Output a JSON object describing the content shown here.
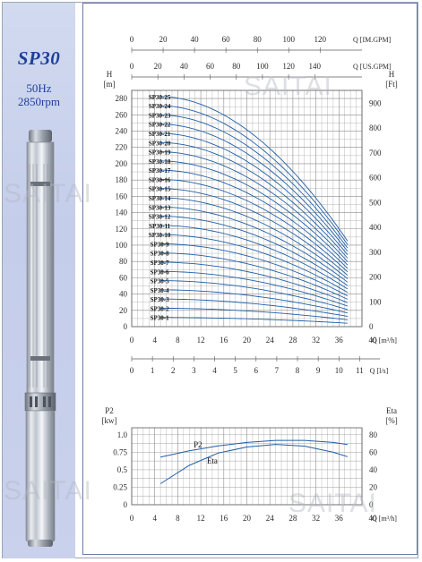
{
  "header": {
    "model": "SP30",
    "frequency": "50Hz",
    "speed": "2850rpm"
  },
  "watermark": "SAITAI",
  "colors": {
    "curve": "#1f5fa8",
    "grid": "#8c8c8c",
    "grid_major": "#5a5a5a",
    "label": "#2a2a2a",
    "sidebar": "#c9d1ec",
    "title": "#1e3f99"
  },
  "chart_data": [
    {
      "type": "line",
      "chart": "head-flow",
      "x_unit_label": "Q [m³/h]",
      "x_ticks": [
        0,
        4,
        8,
        12,
        16,
        20,
        24,
        28,
        32,
        36,
        40
      ],
      "xlim": [
        0,
        40
      ],
      "y_left_label": "H",
      "y_left_unit": "[m]",
      "y_left_ticks": [
        0,
        20,
        40,
        60,
        80,
        100,
        120,
        140,
        160,
        180,
        200,
        220,
        240,
        260,
        280
      ],
      "ylim": [
        0,
        290
      ],
      "y_right_label": "H",
      "y_right_unit": "[Ft]",
      "y_right_ticks": [
        0,
        100,
        200,
        300,
        400,
        500,
        600,
        700,
        800,
        900
      ],
      "top_axes": [
        {
          "label": "Q [IM.GPM]",
          "ticks": [
            0,
            20,
            40,
            60,
            80,
            100,
            120
          ],
          "units_per_m3h": 3.666
        },
        {
          "label": "Q [US.GPM]",
          "ticks": [
            0,
            20,
            40,
            60,
            80,
            100,
            120,
            140
          ],
          "units_per_m3h": 4.403
        }
      ],
      "bottom_axis_ls": {
        "label": "Q [l/s]",
        "ticks": [
          0,
          1,
          2,
          3,
          4,
          5,
          6,
          7,
          8,
          9,
          10,
          11
        ],
        "units_per_m3h": 0.27778
      },
      "curve_x_range": [
        5,
        37.5
      ],
      "grid": true,
      "series": [
        {
          "name": "SP30-1",
          "shut_off_head": 11.3,
          "end_head": 4.2
        },
        {
          "name": "SP30-2",
          "shut_off_head": 22.6,
          "end_head": 8.4
        },
        {
          "name": "SP30-3",
          "shut_off_head": 33.9,
          "end_head": 12.6
        },
        {
          "name": "SP30-4",
          "shut_off_head": 45.2,
          "end_head": 16.8
        },
        {
          "name": "SP30-5",
          "shut_off_head": 56.5,
          "end_head": 21.0
        },
        {
          "name": "SP30-6",
          "shut_off_head": 67.8,
          "end_head": 25.2
        },
        {
          "name": "SP30-7",
          "shut_off_head": 79.1,
          "end_head": 29.4
        },
        {
          "name": "SP30-8",
          "shut_off_head": 90.4,
          "end_head": 33.6
        },
        {
          "name": "SP30-9",
          "shut_off_head": 101.7,
          "end_head": 37.8
        },
        {
          "name": "SP30-10",
          "shut_off_head": 113.0,
          "end_head": 42.0
        },
        {
          "name": "SP30-11",
          "shut_off_head": 124.3,
          "end_head": 46.2
        },
        {
          "name": "SP30-12",
          "shut_off_head": 135.6,
          "end_head": 50.4
        },
        {
          "name": "SP30-13",
          "shut_off_head": 146.9,
          "end_head": 54.6
        },
        {
          "name": "SP30-14",
          "shut_off_head": 158.2,
          "end_head": 58.8
        },
        {
          "name": "SP30-15",
          "shut_off_head": 169.5,
          "end_head": 63.0
        },
        {
          "name": "SP30-16",
          "shut_off_head": 180.8,
          "end_head": 67.2
        },
        {
          "name": "SP30-17",
          "shut_off_head": 192.1,
          "end_head": 71.4
        },
        {
          "name": "SP30-18",
          "shut_off_head": 203.4,
          "end_head": 75.6
        },
        {
          "name": "SP30-19",
          "shut_off_head": 214.7,
          "end_head": 79.8
        },
        {
          "name": "SP30-20",
          "shut_off_head": 226.0,
          "end_head": 84.0
        },
        {
          "name": "SP30-21",
          "shut_off_head": 237.3,
          "end_head": 88.2
        },
        {
          "name": "SP30-22",
          "shut_off_head": 248.6,
          "end_head": 92.4
        },
        {
          "name": "SP30-23",
          "shut_off_head": 259.9,
          "end_head": 96.6
        },
        {
          "name": "SP30-24",
          "shut_off_head": 271.2,
          "end_head": 100.8
        },
        {
          "name": "SP30-25",
          "shut_off_head": 282.5,
          "end_head": 105.0
        }
      ]
    },
    {
      "type": "line",
      "chart": "power-efficiency",
      "x_unit_label": "Q [m³/h]",
      "x_ticks": [
        0,
        4,
        8,
        12,
        16,
        20,
        24,
        28,
        32,
        36,
        40
      ],
      "xlim": [
        0,
        40
      ],
      "y_left_label": "P2",
      "y_left_unit": "[kw]",
      "y_left_ticks": [
        "0",
        "0.25",
        "0.5",
        "0.75",
        "1.0"
      ],
      "ylim": [
        0,
        1.1
      ],
      "y_right_label": "Eta",
      "y_right_unit": "[%]",
      "y_right_ticks": [
        0,
        20,
        40,
        60,
        80
      ],
      "grid": true,
      "series": [
        {
          "name": "P2",
          "axis": "left",
          "x": [
            5,
            10,
            15,
            20,
            25,
            30,
            35,
            37.5
          ],
          "values": [
            0.68,
            0.77,
            0.84,
            0.89,
            0.92,
            0.92,
            0.89,
            0.86
          ]
        },
        {
          "name": "Eta",
          "axis": "right",
          "x": [
            5,
            10,
            15,
            20,
            25,
            30,
            35,
            37.5
          ],
          "values": [
            24,
            45,
            59,
            66,
            69,
            67,
            60,
            55
          ]
        }
      ]
    }
  ]
}
